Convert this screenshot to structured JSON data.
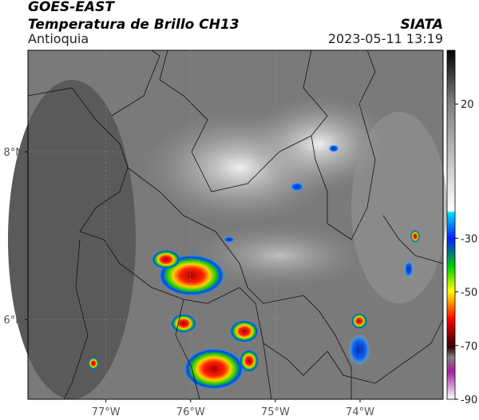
{
  "header": {
    "satellite": "GOES-EAST",
    "title": "Temperatura de Brillo CH13",
    "region": "Antioquia",
    "source": "SIATA",
    "datetime": "2023-05-11 13:19"
  },
  "map": {
    "xlim": [
      -77.92,
      -73.02
    ],
    "ylim": [
      5.05,
      9.21
    ],
    "xticks": [
      {
        "value": -77,
        "label": "77°W"
      },
      {
        "value": -76,
        "label": "76°W"
      },
      {
        "value": -75,
        "label": "75°W"
      },
      {
        "value": -74,
        "label": "74°W"
      }
    ],
    "yticks": [
      {
        "value": 8,
        "label": "8°N"
      },
      {
        "value": 6,
        "label": "6°N"
      }
    ]
  },
  "colorbar": {
    "lim": [
      -90,
      40
    ],
    "ticks": [
      20,
      -30,
      -50,
      -70,
      -90
    ]
  }
}
